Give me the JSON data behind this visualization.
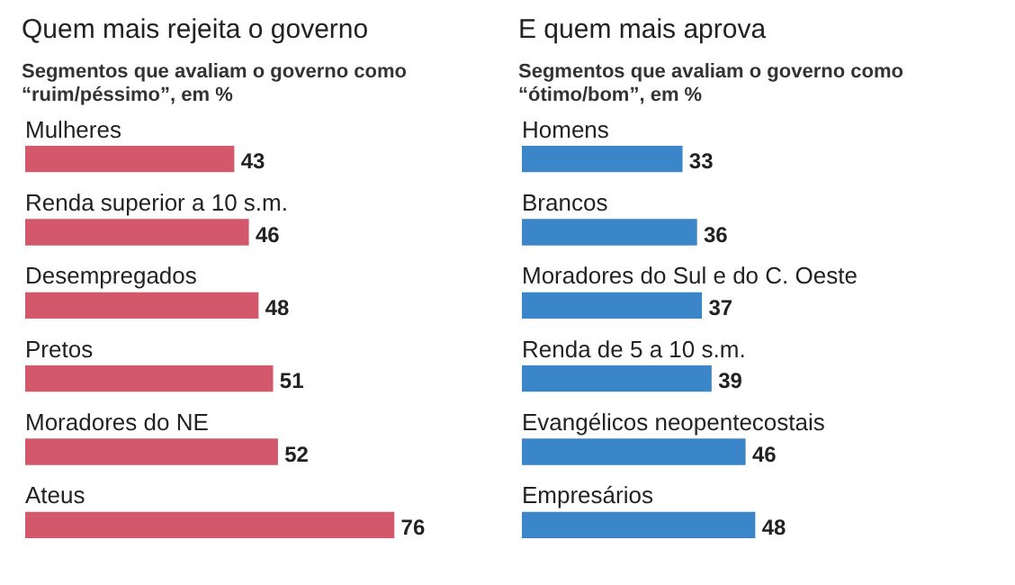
{
  "chart_data": [
    {
      "type": "bar",
      "orientation": "horizontal",
      "title": "Quem mais rejeita o governo",
      "subtitle": "Segmentos que avaliam o governo como “ruim/péssimo”, em %",
      "categories": [
        "Mulheres",
        "Renda superior a 10 s.m.",
        "Desempregados",
        "Pretos",
        "Moradores do NE",
        "Ateus"
      ],
      "values": [
        43,
        46,
        48,
        51,
        52,
        76
      ],
      "color": "#d4586b",
      "data_labels": true
    },
    {
      "type": "bar",
      "orientation": "horizontal",
      "title": "E quem mais aprova",
      "subtitle": "Segmentos que avaliam o governo como “ótimo/bom”, em %",
      "categories": [
        "Homens",
        "Brancos",
        "Moradores do Sul e do C. Oeste",
        "Renda de 5 a 10 s.m.",
        "Evangélicos neopentecostais",
        "Empresários"
      ],
      "values": [
        33,
        36,
        37,
        39,
        46,
        48
      ],
      "color": "#3b86c8",
      "data_labels": true
    }
  ]
}
